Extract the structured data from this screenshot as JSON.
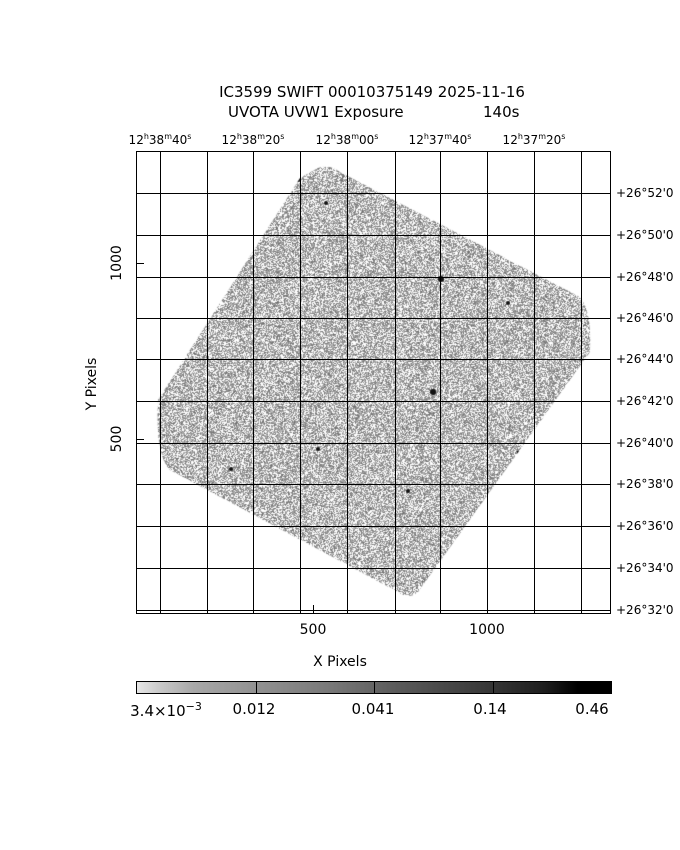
{
  "chart_data": {
    "type": "heatmap",
    "title": "IC3599 SWIFT 00010375149 2025-11-16",
    "subtitle": "UVOTA UVW1 Exposure",
    "exposure": "140s",
    "xlabel": "X Pixels",
    "ylabel": "Y Pixels",
    "x_ticks": [
      "500",
      "1000"
    ],
    "y_ticks": [
      "500",
      "1000"
    ],
    "ra_ticks": [
      {
        "h": "12",
        "m": "38",
        "s": "40"
      },
      {
        "h": "12",
        "m": "38",
        "s": "20"
      },
      {
        "h": "12",
        "m": "38",
        "s": "00"
      },
      {
        "h": "12",
        "m": "37",
        "s": "40"
      },
      {
        "h": "12",
        "m": "37",
        "s": "20"
      }
    ],
    "dec_ticks": [
      "+26°52'0",
      "+26°50'0",
      "+26°48'0",
      "+26°46'0",
      "+26°44'0",
      "+26°42'0",
      "+26°40'0",
      "+26°38'0",
      "+26°36'0",
      "+26°34'0",
      "+26°32'0"
    ],
    "grid": true,
    "colormap": "grayscale (white to black)",
    "colorbar": {
      "labels": [
        "3.4×10",
        "0.012",
        "0.041",
        "0.14",
        "0.46"
      ],
      "first_exponent": "−3",
      "range": [
        0.0034,
        0.46
      ],
      "scale": "log"
    }
  }
}
